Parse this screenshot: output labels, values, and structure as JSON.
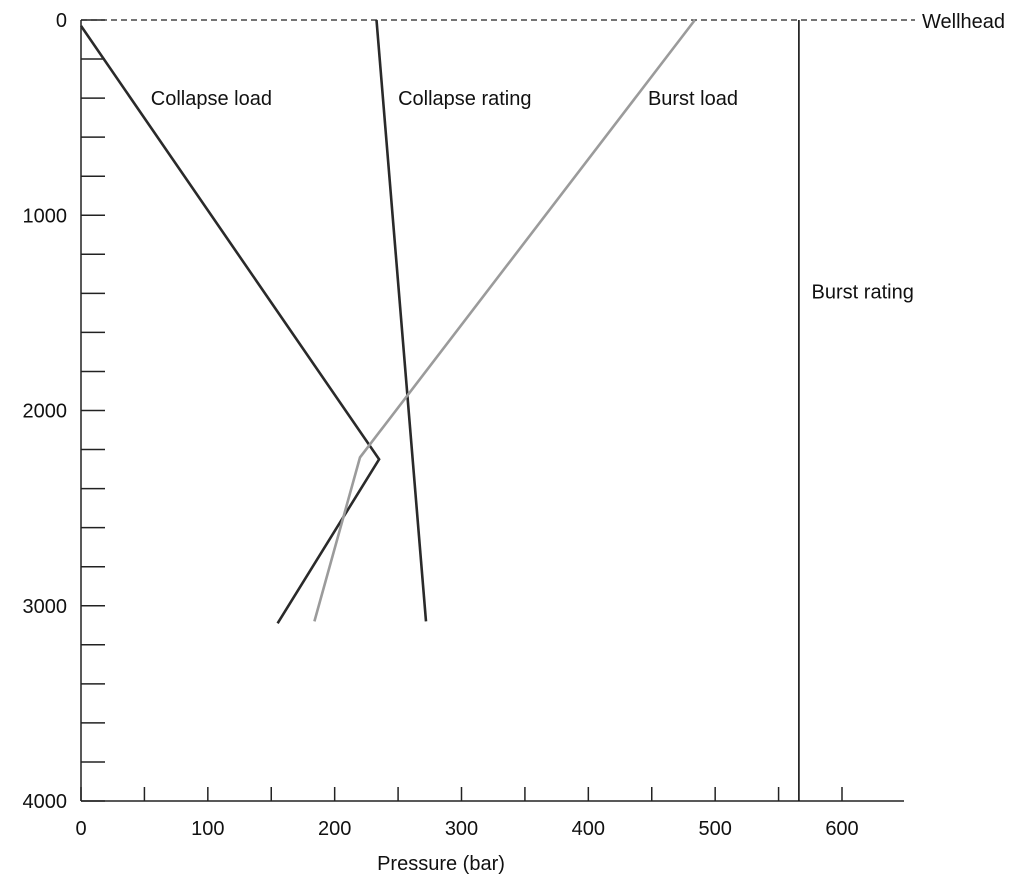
{
  "chart_data": {
    "type": "line",
    "title": "",
    "xlabel": "Pressure (bar)",
    "ylabel": "",
    "xlim": [
      0,
      650
    ],
    "ylim": [
      0,
      4000
    ],
    "y_inverted": true,
    "x_ticks": [
      0,
      100,
      200,
      300,
      400,
      500,
      600
    ],
    "x_tick_labels": [
      "0",
      "100",
      "200",
      "300",
      "400",
      "500",
      "600"
    ],
    "y_ticks": [
      0,
      1000,
      2000,
      3000,
      4000
    ],
    "y_tick_labels": [
      "0",
      "1000",
      "2000",
      "3000",
      "4000"
    ],
    "grid": false,
    "legend": "none",
    "series": [
      {
        "name": "Collapse load",
        "color": "#2a2a2a",
        "points": [
          [
            0,
            30
          ],
          [
            235,
            2250
          ],
          [
            155,
            3090
          ]
        ]
      },
      {
        "name": "Collapse rating",
        "color": "#2a2a2a",
        "points": [
          [
            233,
            0
          ],
          [
            272,
            3080
          ]
        ]
      },
      {
        "name": "Burst load",
        "color": "#9b9b9b",
        "points": [
          [
            484,
            0
          ],
          [
            220,
            2240
          ],
          [
            184,
            3080
          ]
        ]
      },
      {
        "name": "Burst rating",
        "color": "#111111",
        "points": [
          [
            566,
            0
          ],
          [
            566,
            4000
          ]
        ]
      }
    ],
    "reference_lines": [
      {
        "label": "Wellhead",
        "y": 0,
        "style": "dashed",
        "color": "#222222"
      }
    ],
    "annotations": [
      {
        "text": "Collapse load",
        "x": 55,
        "y": 400
      },
      {
        "text": "Collapse rating",
        "x": 250,
        "y": 400
      },
      {
        "text": "Burst load",
        "x": 447,
        "y": 400
      },
      {
        "text": "Burst rating",
        "x": 576,
        "y": 1390
      }
    ]
  }
}
